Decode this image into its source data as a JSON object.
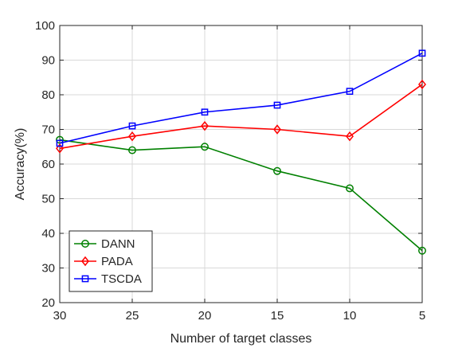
{
  "chart_data": {
    "type": "line",
    "title": "",
    "xlabel": "Number of target classes",
    "ylabel": "Accuracy(%)",
    "x": [
      30,
      25,
      20,
      15,
      10,
      5
    ],
    "xticks": [
      "30",
      "25",
      "20",
      "15",
      "10",
      "5"
    ],
    "ylim": [
      20,
      100
    ],
    "yticks": [
      "20",
      "30",
      "40",
      "50",
      "60",
      "70",
      "80",
      "90",
      "100"
    ],
    "grid": true,
    "legend_position": "bottom-left",
    "series": [
      {
        "name": "DANN",
        "color": "#008000",
        "marker": "circle",
        "values": [
          67,
          64,
          65,
          58,
          53,
          35
        ]
      },
      {
        "name": "PADA",
        "color": "#ff0000",
        "marker": "diamond",
        "values": [
          64.5,
          68,
          71,
          70,
          68,
          83
        ]
      },
      {
        "name": "TSCDA",
        "color": "#0000ff",
        "marker": "square",
        "values": [
          66,
          71,
          75,
          77,
          81,
          92
        ]
      }
    ]
  }
}
